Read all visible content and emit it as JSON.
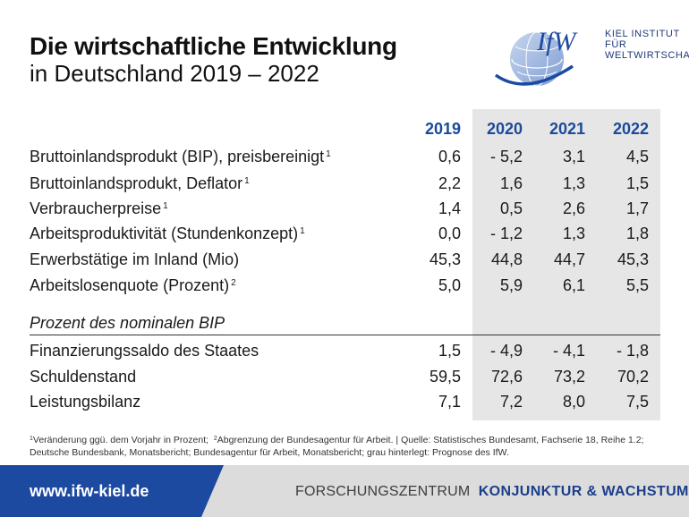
{
  "header": {
    "title": "Die wirtschaftliche Entwicklung",
    "subtitle": "in Deutschland 2019 – 2022",
    "logo_text": "IfW",
    "logo_org_line1": "KIEL INSTITUT FÜR",
    "logo_org_line2": "WELTWIRTSCHAFT"
  },
  "table": {
    "years": [
      "2019",
      "2020",
      "2021",
      "2022"
    ],
    "rows": [
      {
        "label": "Bruttoinlandsprodukt (BIP), preisbereinigt",
        "note": "1",
        "values": [
          "0,6",
          "- 5,2",
          "3,1",
          "4,5"
        ]
      },
      {
        "label": "Bruttoinlandsprodukt, Deflator",
        "note": "1",
        "values": [
          "2,2",
          "1,6",
          "1,3",
          "1,5"
        ]
      },
      {
        "label": "Verbraucherpreise",
        "note": "1",
        "values": [
          "1,4",
          "0,5",
          "2,6",
          "1,7"
        ]
      },
      {
        "label": "Arbeitsproduktivität (Stundenkonzept)",
        "note": "1",
        "values": [
          "0,0",
          "- 1,2",
          "1,3",
          "1,8"
        ]
      },
      {
        "label": "Erwerbstätige im Inland (Mio)",
        "note": "",
        "values": [
          "45,3",
          "44,8",
          "44,7",
          "45,3"
        ]
      },
      {
        "label": "Arbeitslosenquote (Prozent)",
        "note": "2",
        "values": [
          "5,0",
          "5,9",
          "6,1",
          "5,5"
        ]
      }
    ],
    "section_title": "Prozent des nominalen BIP",
    "section_rows": [
      {
        "label": "Finanzierungssaldo des Staates",
        "values": [
          "1,5",
          "- 4,9",
          "- 4,1",
          "- 1,8"
        ]
      },
      {
        "label": "Schuldenstand",
        "values": [
          "59,5",
          "72,6",
          "73,2",
          "70,2"
        ]
      },
      {
        "label": "Leistungsbilanz",
        "values": [
          "7,1",
          "7,2",
          "8,0",
          "7,5"
        ]
      }
    ]
  },
  "footnote": {
    "note1_marker": "1",
    "note1_text": "Veränderung ggü. dem Vorjahr in Prozent;",
    "note2_marker": "2",
    "note2_text": "Abgrenzung der Bundesagentur für Arbeit. | Quelle: Statistisches Bundesamt, Fachserie 18, Reihe 1.2; Deutsche Bundesbank, Monatsbericht; Bundesagentur für Arbeit, Monatsbericht; grau hinterlegt: Prognose des IfW."
  },
  "footer": {
    "url": "www.ifw-kiel.de",
    "center_prefix": "FORSCHUNGSZENTRUM",
    "center_bold": "KONJUNKTUR & WACHSTUM"
  },
  "colors": {
    "accent": "#1b4a9b",
    "footer_blue": "#1c4aa0",
    "forecast_shade": "#e6e6e6",
    "footer_gray": "#dcdcdc"
  }
}
